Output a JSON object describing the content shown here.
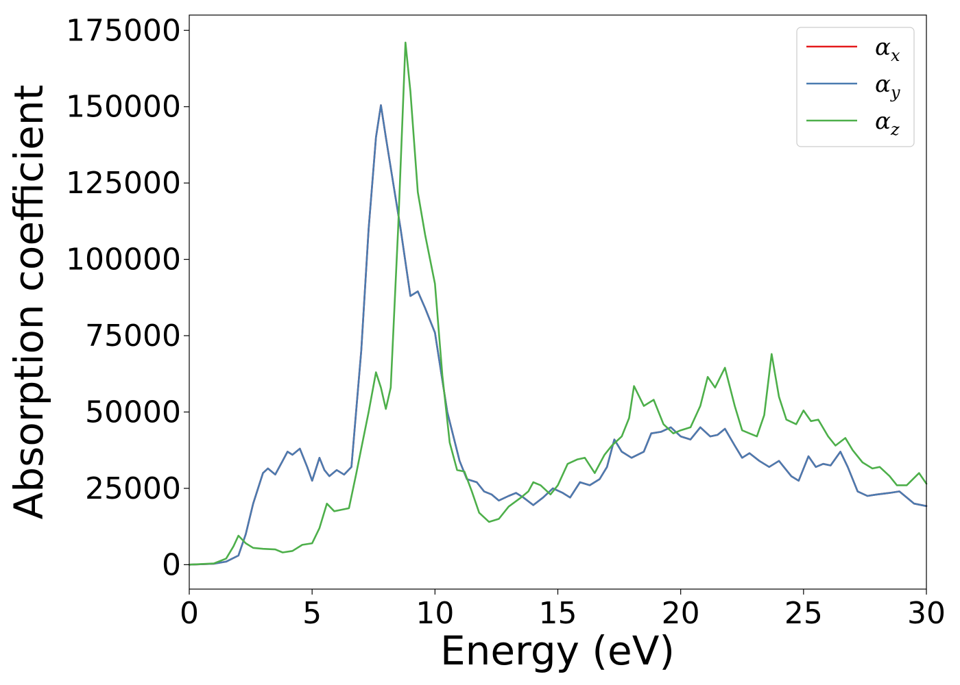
{
  "chart_data": {
    "type": "line",
    "title": "",
    "xlabel": "Energy (eV)",
    "ylabel": "Absorption coefficient",
    "xlim": [
      0,
      30
    ],
    "ylim": [
      -8000,
      180000
    ],
    "xticks": [
      0,
      5,
      10,
      15,
      20,
      25,
      30
    ],
    "xtick_labels": [
      "0",
      "5",
      "10",
      "15",
      "20",
      "25",
      "30"
    ],
    "yticks": [
      0,
      25000,
      50000,
      75000,
      100000,
      125000,
      150000,
      175000
    ],
    "ytick_labels": [
      "0",
      "25000",
      "50000",
      "75000",
      "100000",
      "125000",
      "150000",
      "175000"
    ],
    "grid": false,
    "legend_position": "top-right",
    "series": [
      {
        "name": "αx",
        "legend_symbol": "α",
        "legend_subscript": "x",
        "color": "#e41a1c",
        "points": [
          [
            0,
            0
          ],
          [
            1,
            300
          ],
          [
            1.5,
            1000
          ],
          [
            2,
            3000
          ],
          [
            2.3,
            10000
          ],
          [
            2.6,
            20000
          ],
          [
            3,
            30000
          ],
          [
            3.2,
            31500
          ],
          [
            3.5,
            29500
          ],
          [
            3.8,
            34000
          ],
          [
            4,
            37000
          ],
          [
            4.2,
            36000
          ],
          [
            4.5,
            38000
          ],
          [
            4.8,
            32000
          ],
          [
            5,
            27500
          ],
          [
            5.3,
            35000
          ],
          [
            5.5,
            31000
          ],
          [
            5.7,
            29000
          ],
          [
            6,
            31000
          ],
          [
            6.3,
            29500
          ],
          [
            6.6,
            32000
          ],
          [
            7,
            70000
          ],
          [
            7.3,
            110000
          ],
          [
            7.6,
            140000
          ],
          [
            7.8,
            150500
          ],
          [
            8,
            140000
          ],
          [
            8.3,
            125000
          ],
          [
            8.6,
            110000
          ],
          [
            9,
            88000
          ],
          [
            9.3,
            89500
          ],
          [
            9.6,
            84000
          ],
          [
            10,
            76000
          ],
          [
            10.5,
            50000
          ],
          [
            11,
            34000
          ],
          [
            11.3,
            28000
          ],
          [
            11.7,
            27000
          ],
          [
            12,
            24000
          ],
          [
            12.3,
            23000
          ],
          [
            12.6,
            21000
          ],
          [
            13,
            22500
          ],
          [
            13.3,
            23500
          ],
          [
            13.6,
            22000
          ],
          [
            14,
            19500
          ],
          [
            14.4,
            22000
          ],
          [
            14.8,
            25000
          ],
          [
            15.2,
            23500
          ],
          [
            15.5,
            22000
          ],
          [
            15.9,
            27000
          ],
          [
            16.3,
            26000
          ],
          [
            16.7,
            28000
          ],
          [
            17,
            32000
          ],
          [
            17.3,
            41000
          ],
          [
            17.6,
            37000
          ],
          [
            18,
            35000
          ],
          [
            18.5,
            37000
          ],
          [
            18.8,
            43000
          ],
          [
            19.2,
            43500
          ],
          [
            19.6,
            45000
          ],
          [
            20,
            42000
          ],
          [
            20.4,
            41000
          ],
          [
            20.8,
            45000
          ],
          [
            21.2,
            42000
          ],
          [
            21.5,
            42500
          ],
          [
            21.8,
            44500
          ],
          [
            22.2,
            39000
          ],
          [
            22.5,
            35000
          ],
          [
            22.8,
            36500
          ],
          [
            23.2,
            34000
          ],
          [
            23.6,
            32000
          ],
          [
            24,
            34000
          ],
          [
            24.5,
            29000
          ],
          [
            24.8,
            27500
          ],
          [
            25.2,
            35500
          ],
          [
            25.5,
            32000
          ],
          [
            25.8,
            33000
          ],
          [
            26.1,
            32500
          ],
          [
            26.5,
            37000
          ],
          [
            26.8,
            32000
          ],
          [
            27.2,
            24000
          ],
          [
            27.6,
            22500
          ],
          [
            28,
            23000
          ],
          [
            28.5,
            23500
          ],
          [
            28.9,
            24000
          ],
          [
            29.2,
            22000
          ],
          [
            29.5,
            20000
          ],
          [
            30,
            19200
          ]
        ]
      },
      {
        "name": "αy",
        "legend_symbol": "α",
        "legend_subscript": "y",
        "color": "#4a7bb0",
        "points": [
          [
            0,
            0
          ],
          [
            1,
            300
          ],
          [
            1.5,
            1000
          ],
          [
            2,
            3000
          ],
          [
            2.3,
            10000
          ],
          [
            2.6,
            20000
          ],
          [
            3,
            30000
          ],
          [
            3.2,
            31500
          ],
          [
            3.5,
            29500
          ],
          [
            3.8,
            34000
          ],
          [
            4,
            37000
          ],
          [
            4.2,
            36000
          ],
          [
            4.5,
            38000
          ],
          [
            4.8,
            32000
          ],
          [
            5,
            27500
          ],
          [
            5.3,
            35000
          ],
          [
            5.5,
            31000
          ],
          [
            5.7,
            29000
          ],
          [
            6,
            31000
          ],
          [
            6.3,
            29500
          ],
          [
            6.6,
            32000
          ],
          [
            7,
            70000
          ],
          [
            7.3,
            110000
          ],
          [
            7.6,
            140000
          ],
          [
            7.8,
            150500
          ],
          [
            8,
            140000
          ],
          [
            8.3,
            125000
          ],
          [
            8.6,
            110000
          ],
          [
            9,
            88000
          ],
          [
            9.3,
            89500
          ],
          [
            9.6,
            84000
          ],
          [
            10,
            76000
          ],
          [
            10.5,
            50000
          ],
          [
            11,
            34000
          ],
          [
            11.3,
            28000
          ],
          [
            11.7,
            27000
          ],
          [
            12,
            24000
          ],
          [
            12.3,
            23000
          ],
          [
            12.6,
            21000
          ],
          [
            13,
            22500
          ],
          [
            13.3,
            23500
          ],
          [
            13.6,
            22000
          ],
          [
            14,
            19500
          ],
          [
            14.4,
            22000
          ],
          [
            14.8,
            25000
          ],
          [
            15.2,
            23500
          ],
          [
            15.5,
            22000
          ],
          [
            15.9,
            27000
          ],
          [
            16.3,
            26000
          ],
          [
            16.7,
            28000
          ],
          [
            17,
            32000
          ],
          [
            17.3,
            41000
          ],
          [
            17.6,
            37000
          ],
          [
            18,
            35000
          ],
          [
            18.5,
            37000
          ],
          [
            18.8,
            43000
          ],
          [
            19.2,
            43500
          ],
          [
            19.6,
            45000
          ],
          [
            20,
            42000
          ],
          [
            20.4,
            41000
          ],
          [
            20.8,
            45000
          ],
          [
            21.2,
            42000
          ],
          [
            21.5,
            42500
          ],
          [
            21.8,
            44500
          ],
          [
            22.2,
            39000
          ],
          [
            22.5,
            35000
          ],
          [
            22.8,
            36500
          ],
          [
            23.2,
            34000
          ],
          [
            23.6,
            32000
          ],
          [
            24,
            34000
          ],
          [
            24.5,
            29000
          ],
          [
            24.8,
            27500
          ],
          [
            25.2,
            35500
          ],
          [
            25.5,
            32000
          ],
          [
            25.8,
            33000
          ],
          [
            26.1,
            32500
          ],
          [
            26.5,
            37000
          ],
          [
            26.8,
            32000
          ],
          [
            27.2,
            24000
          ],
          [
            27.6,
            22500
          ],
          [
            28,
            23000
          ],
          [
            28.5,
            23500
          ],
          [
            28.9,
            24000
          ],
          [
            29.2,
            22000
          ],
          [
            29.5,
            20000
          ],
          [
            30,
            19200
          ]
        ]
      },
      {
        "name": "αz",
        "legend_symbol": "α",
        "legend_subscript": "z",
        "color": "#4daf4a",
        "points": [
          [
            0,
            0
          ],
          [
            1,
            400
          ],
          [
            1.5,
            2000
          ],
          [
            1.8,
            6000
          ],
          [
            2,
            9500
          ],
          [
            2.3,
            7000
          ],
          [
            2.6,
            5500
          ],
          [
            3,
            5200
          ],
          [
            3.5,
            5000
          ],
          [
            3.8,
            4000
          ],
          [
            4.2,
            4500
          ],
          [
            4.6,
            6500
          ],
          [
            5,
            7000
          ],
          [
            5.3,
            12000
          ],
          [
            5.6,
            20000
          ],
          [
            5.9,
            17500
          ],
          [
            6.2,
            18000
          ],
          [
            6.5,
            18500
          ],
          [
            6.8,
            30000
          ],
          [
            7,
            38000
          ],
          [
            7.3,
            50000
          ],
          [
            7.6,
            63000
          ],
          [
            7.8,
            58000
          ],
          [
            8,
            51000
          ],
          [
            8.2,
            58000
          ],
          [
            8.5,
            110000
          ],
          [
            8.8,
            171000
          ],
          [
            9,
            155000
          ],
          [
            9.3,
            122000
          ],
          [
            9.6,
            108000
          ],
          [
            10,
            92000
          ],
          [
            10.3,
            62000
          ],
          [
            10.6,
            40000
          ],
          [
            10.9,
            31000
          ],
          [
            11.2,
            30500
          ],
          [
            11.5,
            24000
          ],
          [
            11.8,
            17000
          ],
          [
            12.2,
            14000
          ],
          [
            12.6,
            15000
          ],
          [
            13,
            19000
          ],
          [
            13.5,
            22000
          ],
          [
            13.8,
            24000
          ],
          [
            14,
            27000
          ],
          [
            14.3,
            26000
          ],
          [
            14.7,
            23000
          ],
          [
            15,
            26000
          ],
          [
            15.4,
            33000
          ],
          [
            15.8,
            34500
          ],
          [
            16.1,
            35000
          ],
          [
            16.5,
            30000
          ],
          [
            16.9,
            36000
          ],
          [
            17.2,
            39000
          ],
          [
            17.6,
            42000
          ],
          [
            17.9,
            48000
          ],
          [
            18.1,
            58500
          ],
          [
            18.5,
            52000
          ],
          [
            18.9,
            54000
          ],
          [
            19.3,
            46000
          ],
          [
            19.7,
            43000
          ],
          [
            20,
            44000
          ],
          [
            20.4,
            45000
          ],
          [
            20.8,
            52000
          ],
          [
            21.1,
            61500
          ],
          [
            21.4,
            58000
          ],
          [
            21.8,
            64500
          ],
          [
            22.2,
            52000
          ],
          [
            22.5,
            44000
          ],
          [
            22.8,
            43000
          ],
          [
            23.1,
            42000
          ],
          [
            23.4,
            49000
          ],
          [
            23.7,
            69000
          ],
          [
            24,
            55000
          ],
          [
            24.3,
            47500
          ],
          [
            24.7,
            46000
          ],
          [
            25,
            50500
          ],
          [
            25.3,
            47000
          ],
          [
            25.6,
            47500
          ],
          [
            26,
            42000
          ],
          [
            26.3,
            39000
          ],
          [
            26.7,
            41500
          ],
          [
            27,
            37500
          ],
          [
            27.4,
            33500
          ],
          [
            27.8,
            31500
          ],
          [
            28.1,
            32000
          ],
          [
            28.5,
            29000
          ],
          [
            28.8,
            26000
          ],
          [
            29.2,
            26000
          ],
          [
            29.7,
            30000
          ],
          [
            30,
            26500
          ]
        ]
      }
    ]
  }
}
